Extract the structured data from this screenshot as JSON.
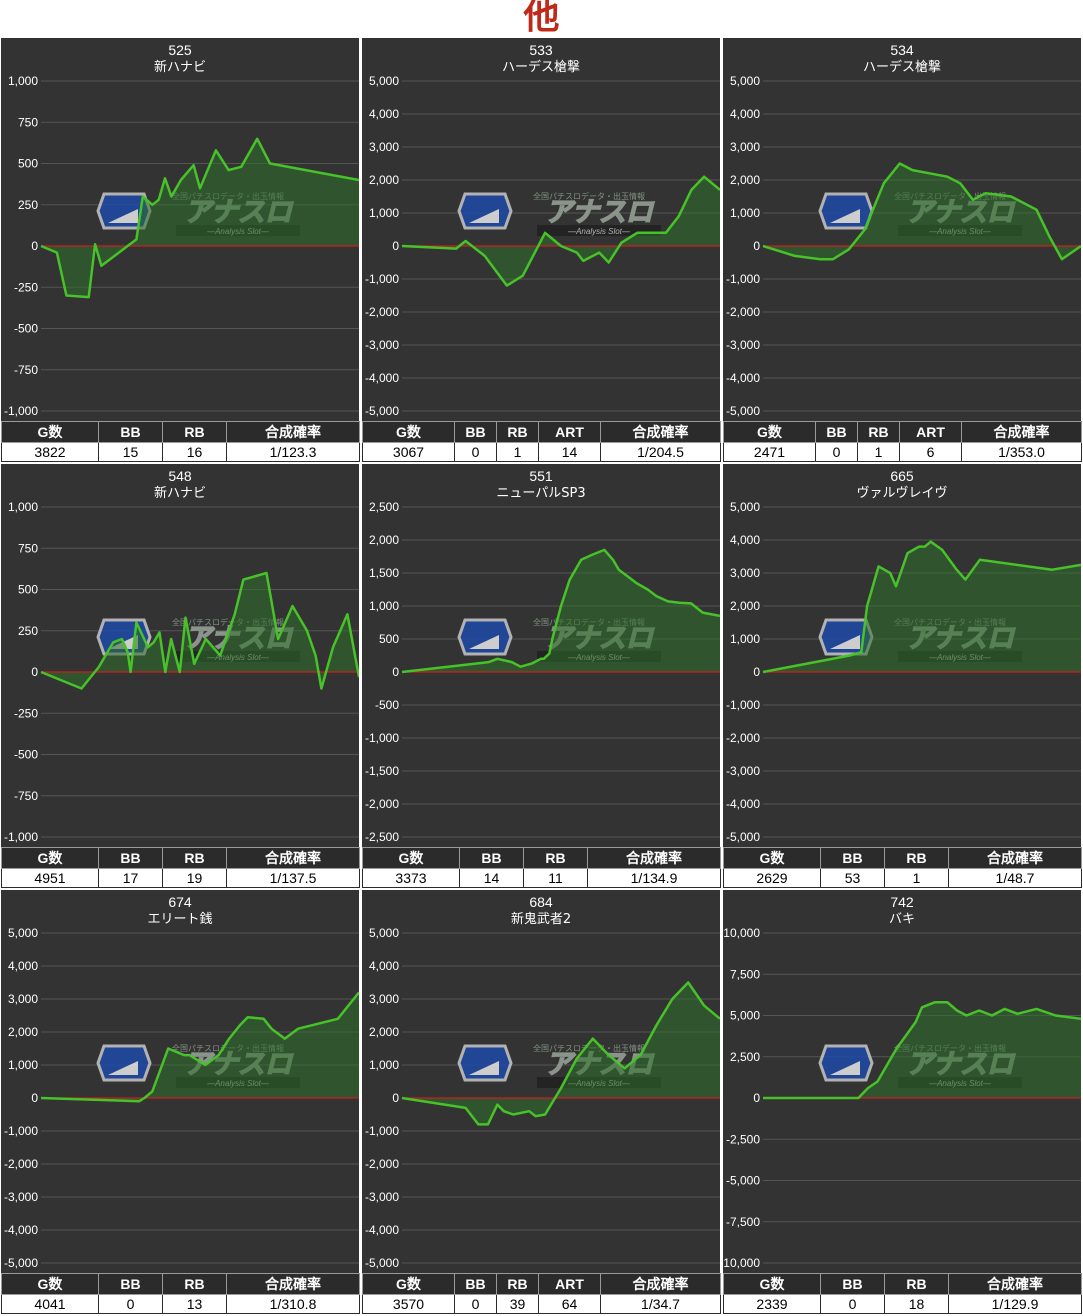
{
  "page": {
    "title": "他"
  },
  "colors": {
    "panel_bg": "#333333",
    "grid": "#555555",
    "line": "#47c229",
    "fill": "#2e6f2a",
    "zero": "#cc1f1f",
    "header_bg": "#2b2b2b",
    "accent_title": "#c0281a"
  },
  "watermark": {
    "logo": "アナスロ",
    "tagline": "全国パチスロデータ・出玉情報",
    "sub": "Analysis Slot"
  },
  "chart_data": [
    {
      "type": "area",
      "machine_no": "525",
      "machine_name": "新ハナビ",
      "yticks": [
        "1,000",
        "750",
        "500",
        "250",
        "0",
        "-250",
        "-500",
        "-750",
        "-1,000"
      ],
      "ylim": [
        -1000,
        1000
      ],
      "points": [
        [
          0,
          0
        ],
        [
          5,
          -40
        ],
        [
          8,
          -300
        ],
        [
          15,
          -310
        ],
        [
          17,
          10
        ],
        [
          19,
          -120
        ],
        [
          30,
          40
        ],
        [
          32,
          300
        ],
        [
          35,
          250
        ],
        [
          37,
          280
        ],
        [
          39,
          410
        ],
        [
          41,
          300
        ],
        [
          44,
          400
        ],
        [
          48,
          490
        ],
        [
          50,
          350
        ],
        [
          55,
          580
        ],
        [
          59,
          460
        ],
        [
          63,
          480
        ],
        [
          68,
          650
        ],
        [
          72,
          500
        ],
        [
          100,
          400
        ]
      ],
      "stats": {
        "headers": [
          "G数",
          "BB",
          "RB",
          "合成確率"
        ],
        "values": [
          "3822",
          "15",
          "16",
          "1/123.3"
        ]
      }
    },
    {
      "type": "area",
      "machine_no": "533",
      "machine_name": "ハーデス槍撃",
      "yticks": [
        "5,000",
        "4,000",
        "3,000",
        "2,000",
        "1,000",
        "0",
        "-1,000",
        "-2,000",
        "-3,000",
        "-4,000",
        "-5,000"
      ],
      "ylim": [
        -5000,
        5000
      ],
      "points": [
        [
          0,
          0
        ],
        [
          17,
          -80
        ],
        [
          20,
          150
        ],
        [
          26,
          -300
        ],
        [
          33,
          -1200
        ],
        [
          38,
          -900
        ],
        [
          45,
          400
        ],
        [
          50,
          0
        ],
        [
          55,
          -200
        ],
        [
          57,
          -450
        ],
        [
          62,
          -200
        ],
        [
          65,
          -500
        ],
        [
          69,
          100
        ],
        [
          74,
          400
        ],
        [
          83,
          400
        ],
        [
          87,
          900
        ],
        [
          91,
          1700
        ],
        [
          95,
          2100
        ],
        [
          100,
          1700
        ]
      ],
      "stats": {
        "headers": [
          "G数",
          "BB",
          "RB",
          "ART",
          "合成確率"
        ],
        "values": [
          "3067",
          "0",
          "1",
          "14",
          "1/204.5"
        ]
      }
    },
    {
      "type": "area",
      "machine_no": "534",
      "machine_name": "ハーデス槍撃",
      "yticks": [
        "5,000",
        "4,000",
        "3,000",
        "2,000",
        "1,000",
        "0",
        "-1,000",
        "-2,000",
        "-3,000",
        "-4,000",
        "-5,000"
      ],
      "ylim": [
        -5000,
        5000
      ],
      "points": [
        [
          0,
          0
        ],
        [
          10,
          -300
        ],
        [
          18,
          -400
        ],
        [
          22,
          -400
        ],
        [
          27,
          -100
        ],
        [
          32,
          500
        ],
        [
          38,
          1900
        ],
        [
          43,
          2500
        ],
        [
          47,
          2300
        ],
        [
          58,
          2100
        ],
        [
          62,
          1900
        ],
        [
          66,
          1400
        ],
        [
          70,
          1600
        ],
        [
          78,
          1500
        ],
        [
          82,
          1300
        ],
        [
          86,
          1100
        ],
        [
          90,
          300
        ],
        [
          94,
          -400
        ],
        [
          100,
          0
        ]
      ],
      "stats": {
        "headers": [
          "G数",
          "BB",
          "RB",
          "ART",
          "合成確率"
        ],
        "values": [
          "2471",
          "0",
          "1",
          "6",
          "1/353.0"
        ]
      }
    },
    {
      "type": "area",
      "machine_no": "548",
      "machine_name": "新ハナビ",
      "yticks": [
        "1,000",
        "750",
        "500",
        "250",
        "0",
        "-250",
        "-500",
        "-750",
        "-1,000"
      ],
      "ylim": [
        -1000,
        1000
      ],
      "points": [
        [
          0,
          0
        ],
        [
          14,
          -100
        ],
        [
          20,
          30
        ],
        [
          25,
          180
        ],
        [
          28,
          200
        ],
        [
          30,
          120
        ],
        [
          31,
          0
        ],
        [
          33,
          300
        ],
        [
          37,
          150
        ],
        [
          39,
          180
        ],
        [
          41,
          240
        ],
        [
          43,
          0
        ],
        [
          45,
          200
        ],
        [
          48,
          0
        ],
        [
          50,
          330
        ],
        [
          53,
          50
        ],
        [
          57,
          200
        ],
        [
          62,
          100
        ],
        [
          67,
          350
        ],
        [
          70,
          560
        ],
        [
          78,
          600
        ],
        [
          82,
          200
        ],
        [
          87,
          400
        ],
        [
          92,
          250
        ],
        [
          95,
          100
        ],
        [
          97,
          -100
        ],
        [
          101,
          150
        ],
        [
          106,
          350
        ],
        [
          110,
          -30
        ]
      ],
      "stats": {
        "headers": [
          "G数",
          "BB",
          "RB",
          "合成確率"
        ],
        "values": [
          "4951",
          "17",
          "19",
          "1/137.5"
        ]
      }
    },
    {
      "type": "area",
      "machine_no": "551",
      "machine_name": "ニューパルSP3",
      "yticks": [
        "2,500",
        "2,000",
        "1,500",
        "1,000",
        "500",
        "0",
        "-500",
        "-1,000",
        "-1,500",
        "-2,000",
        "-2,500"
      ],
      "ylim": [
        -2500,
        2500
      ],
      "points": [
        [
          0,
          0
        ],
        [
          30,
          150
        ],
        [
          33,
          200
        ],
        [
          38,
          150
        ],
        [
          41,
          80
        ],
        [
          45,
          130
        ],
        [
          48,
          200
        ],
        [
          49,
          200
        ],
        [
          51,
          280
        ],
        [
          52,
          500
        ],
        [
          55,
          1000
        ],
        [
          58,
          1400
        ],
        [
          62,
          1700
        ],
        [
          66,
          1780
        ],
        [
          70,
          1850
        ],
        [
          73,
          1700
        ],
        [
          75,
          1550
        ],
        [
          78,
          1450
        ],
        [
          81,
          1350
        ],
        [
          85,
          1250
        ],
        [
          88,
          1150
        ],
        [
          92,
          1070
        ],
        [
          96,
          1050
        ],
        [
          100,
          1040
        ],
        [
          104,
          900
        ],
        [
          110,
          850
        ]
      ],
      "stats": {
        "headers": [
          "G数",
          "BB",
          "RB",
          "合成確率"
        ],
        "values": [
          "3373",
          "14",
          "11",
          "1/134.9"
        ]
      }
    },
    {
      "type": "area",
      "machine_no": "665",
      "machine_name": "ヴァルヴレイヴ",
      "yticks": [
        "5,000",
        "4,000",
        "3,000",
        "2,000",
        "1,000",
        "0",
        "-1,000",
        "-2,000",
        "-3,000",
        "-4,000",
        "-5,000"
      ],
      "ylim": [
        -5000,
        5000
      ],
      "points": [
        [
          0,
          0
        ],
        [
          30,
          500
        ],
        [
          34,
          600
        ],
        [
          36,
          2000
        ],
        [
          40,
          3200
        ],
        [
          44,
          3000
        ],
        [
          46,
          2600
        ],
        [
          50,
          3600
        ],
        [
          54,
          3800
        ],
        [
          56,
          3800
        ],
        [
          58,
          3950
        ],
        [
          62,
          3700
        ],
        [
          67,
          3100
        ],
        [
          70,
          2800
        ],
        [
          75,
          3400
        ],
        [
          100,
          3100
        ],
        [
          110,
          3250
        ]
      ],
      "stats": {
        "headers": [
          "G数",
          "BB",
          "RB",
          "合成確率"
        ],
        "values": [
          "2629",
          "53",
          "1",
          "1/48.7"
        ]
      }
    },
    {
      "type": "area",
      "machine_no": "674",
      "machine_name": "エリート銭",
      "yticks": [
        "5,000",
        "4,000",
        "3,000",
        "2,000",
        "1,000",
        "0",
        "-1,000",
        "-2,000",
        "-3,000",
        "-4,000",
        "-5,000"
      ],
      "ylim": [
        -5000,
        5000
      ],
      "points": [
        [
          0,
          0
        ],
        [
          37,
          -100
        ],
        [
          39,
          0
        ],
        [
          42,
          200
        ],
        [
          48,
          1500
        ],
        [
          54,
          1300
        ],
        [
          56,
          1300
        ],
        [
          62,
          1000
        ],
        [
          67,
          1300
        ],
        [
          71,
          1800
        ],
        [
          75,
          2200
        ],
        [
          78,
          2450
        ],
        [
          84,
          2400
        ],
        [
          87,
          2100
        ],
        [
          92,
          1800
        ],
        [
          97,
          2100
        ],
        [
          112,
          2400
        ],
        [
          120,
          3200
        ]
      ],
      "stats": {
        "headers": [
          "G数",
          "BB",
          "RB",
          "合成確率"
        ],
        "values": [
          "4041",
          "0",
          "13",
          "1/310.8"
        ]
      }
    },
    {
      "type": "area",
      "machine_no": "684",
      "machine_name": "新鬼武者2",
      "yticks": [
        "5,000",
        "4,000",
        "3,000",
        "2,000",
        "1,000",
        "0",
        "-1,000",
        "-2,000",
        "-3,000",
        "-4,000",
        "-5,000"
      ],
      "ylim": [
        -5000,
        5000
      ],
      "points": [
        [
          0,
          0
        ],
        [
          20,
          -300
        ],
        [
          24,
          -800
        ],
        [
          27,
          -800
        ],
        [
          30,
          -200
        ],
        [
          32,
          -400
        ],
        [
          35,
          -500
        ],
        [
          40,
          -400
        ],
        [
          42,
          -550
        ],
        [
          45,
          -500
        ],
        [
          50,
          300
        ],
        [
          55,
          1200
        ],
        [
          60,
          1800
        ],
        [
          65,
          1300
        ],
        [
          70,
          900
        ],
        [
          75,
          1300
        ],
        [
          80,
          2200
        ],
        [
          85,
          3000
        ],
        [
          90,
          3500
        ],
        [
          95,
          2800
        ],
        [
          100,
          2400
        ]
      ],
      "stats": {
        "headers": [
          "G数",
          "BB",
          "RB",
          "ART",
          "合成確率"
        ],
        "values": [
          "3570",
          "0",
          "39",
          "64",
          "1/34.7"
        ]
      }
    },
    {
      "type": "area",
      "machine_no": "742",
      "machine_name": "バキ",
      "yticks": [
        "10,000",
        "7,500",
        "5,000",
        "2,500",
        "0",
        "-2,500",
        "-5,000",
        "-7,500",
        "-10,000"
      ],
      "ylim": [
        -10000,
        10000
      ],
      "points": [
        [
          0,
          0
        ],
        [
          30,
          0
        ],
        [
          33,
          600
        ],
        [
          36,
          1000
        ],
        [
          42,
          3000
        ],
        [
          48,
          4600
        ],
        [
          50,
          5500
        ],
        [
          54,
          5800
        ],
        [
          58,
          5800
        ],
        [
          61,
          5300
        ],
        [
          64,
          5000
        ],
        [
          68,
          5300
        ],
        [
          72,
          5000
        ],
        [
          76,
          5400
        ],
        [
          80,
          5100
        ],
        [
          86,
          5400
        ],
        [
          92,
          5000
        ],
        [
          100,
          4800
        ]
      ],
      "stats": {
        "headers": [
          "G数",
          "BB",
          "RB",
          "合成確率"
        ],
        "values": [
          "2339",
          "0",
          "18",
          "1/129.9"
        ]
      }
    }
  ]
}
